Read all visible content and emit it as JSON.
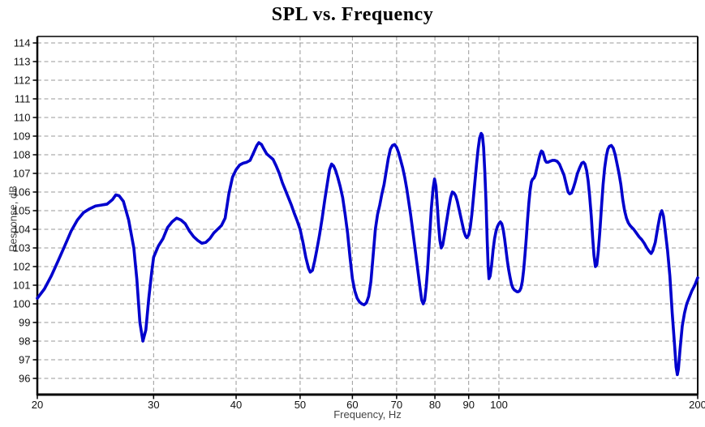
{
  "chart_data": {
    "type": "line",
    "title": "SPL vs. Frequency",
    "xlabel": "Frequency, Hz",
    "ylabel": "Response, dB",
    "x_scale": "log",
    "xlim": [
      20,
      200
    ],
    "ylim": [
      95.1,
      114.35
    ],
    "x_ticks": [
      20,
      30,
      40,
      50,
      60,
      70,
      80,
      90,
      100,
      200
    ],
    "grid_x": [
      30,
      40,
      50,
      60,
      70,
      80,
      90,
      100
    ],
    "y_ticks": [
      96,
      97,
      98,
      99,
      100,
      101,
      102,
      103,
      104,
      105,
      106,
      107,
      108,
      109,
      110,
      111,
      112,
      113,
      114
    ],
    "grid": "dashed",
    "legend": "none",
    "line_color": "#0000CD",
    "grid_color": "#999999",
    "axis_color": "#000000",
    "label_color": "#444444",
    "background": "#FFFFFF",
    "series": [
      {
        "name": "SPL",
        "points": [
          [
            20,
            100.3
          ],
          [
            20.5,
            100.8
          ],
          [
            21,
            101.5
          ],
          [
            21.5,
            102.3
          ],
          [
            22,
            103.1
          ],
          [
            22.5,
            103.9
          ],
          [
            23,
            104.5
          ],
          [
            23.5,
            104.9
          ],
          [
            24,
            105.1
          ],
          [
            24.5,
            105.25
          ],
          [
            25,
            105.3
          ],
          [
            25.5,
            105.35
          ],
          [
            26,
            105.6
          ],
          [
            26.3,
            105.85
          ],
          [
            26.6,
            105.8
          ],
          [
            27,
            105.5
          ],
          [
            27.5,
            104.5
          ],
          [
            28,
            103.0
          ],
          [
            28.3,
            101.3
          ],
          [
            28.6,
            99.0
          ],
          [
            28.9,
            98.0
          ],
          [
            29.2,
            98.6
          ],
          [
            29.5,
            100.3
          ],
          [
            29.8,
            101.7
          ],
          [
            30,
            102.5
          ],
          [
            30.5,
            103.1
          ],
          [
            31,
            103.5
          ],
          [
            31.5,
            104.1
          ],
          [
            32,
            104.4
          ],
          [
            32.5,
            104.6
          ],
          [
            33,
            104.5
          ],
          [
            33.5,
            104.3
          ],
          [
            34,
            103.9
          ],
          [
            34.5,
            103.6
          ],
          [
            35,
            103.4
          ],
          [
            35.5,
            103.25
          ],
          [
            36,
            103.3
          ],
          [
            36.5,
            103.5
          ],
          [
            37,
            103.8
          ],
          [
            37.5,
            104.0
          ],
          [
            38,
            104.2
          ],
          [
            38.5,
            104.6
          ],
          [
            39,
            105.9
          ],
          [
            39.5,
            106.8
          ],
          [
            40,
            107.2
          ],
          [
            40.5,
            107.45
          ],
          [
            41,
            107.55
          ],
          [
            41.5,
            107.6
          ],
          [
            42,
            107.7
          ],
          [
            42.5,
            108.1
          ],
          [
            43,
            108.5
          ],
          [
            43.3,
            108.65
          ],
          [
            43.7,
            108.55
          ],
          [
            44,
            108.35
          ],
          [
            44.5,
            108.05
          ],
          [
            45,
            107.9
          ],
          [
            45.5,
            107.75
          ],
          [
            46,
            107.4
          ],
          [
            46.5,
            107.0
          ],
          [
            47,
            106.5
          ],
          [
            47.5,
            106.1
          ],
          [
            48,
            105.7
          ],
          [
            48.5,
            105.3
          ],
          [
            49,
            104.85
          ],
          [
            49.5,
            104.45
          ],
          [
            50,
            104.0
          ],
          [
            50.5,
            103.3
          ],
          [
            51,
            102.5
          ],
          [
            51.5,
            101.9
          ],
          [
            51.8,
            101.7
          ],
          [
            52.2,
            101.8
          ],
          [
            52.6,
            102.3
          ],
          [
            53,
            102.9
          ],
          [
            53.5,
            103.7
          ],
          [
            54,
            104.6
          ],
          [
            54.5,
            105.6
          ],
          [
            55,
            106.5
          ],
          [
            55.4,
            107.2
          ],
          [
            55.8,
            107.5
          ],
          [
            56.2,
            107.4
          ],
          [
            56.6,
            107.15
          ],
          [
            57,
            106.8
          ],
          [
            57.5,
            106.3
          ],
          [
            58,
            105.7
          ],
          [
            58.5,
            104.8
          ],
          [
            59,
            103.8
          ],
          [
            59.5,
            102.5
          ],
          [
            60,
            101.35
          ],
          [
            60.5,
            100.7
          ],
          [
            61,
            100.3
          ],
          [
            61.5,
            100.1
          ],
          [
            62,
            100.0
          ],
          [
            62.5,
            99.95
          ],
          [
            63,
            100.05
          ],
          [
            63.5,
            100.4
          ],
          [
            64,
            101.2
          ],
          [
            64.5,
            102.6
          ],
          [
            65,
            104.0
          ],
          [
            65.5,
            104.8
          ],
          [
            66,
            105.3
          ],
          [
            66.5,
            105.9
          ],
          [
            67,
            106.4
          ],
          [
            67.5,
            107.1
          ],
          [
            68,
            107.8
          ],
          [
            68.5,
            108.3
          ],
          [
            69,
            108.5
          ],
          [
            69.5,
            108.55
          ],
          [
            70,
            108.4
          ],
          [
            70.5,
            108.1
          ],
          [
            71,
            107.7
          ],
          [
            71.5,
            107.3
          ],
          [
            72,
            106.8
          ],
          [
            72.5,
            106.2
          ],
          [
            73,
            105.5
          ],
          [
            73.5,
            104.8
          ],
          [
            74,
            104.0
          ],
          [
            74.5,
            103.2
          ],
          [
            75,
            102.4
          ],
          [
            75.5,
            101.6
          ],
          [
            76,
            100.8
          ],
          [
            76.4,
            100.2
          ],
          [
            76.8,
            100.0
          ],
          [
            77.2,
            100.2
          ],
          [
            77.6,
            100.9
          ],
          [
            78,
            101.9
          ],
          [
            78.5,
            103.5
          ],
          [
            79,
            105.1
          ],
          [
            79.5,
            106.2
          ],
          [
            79.9,
            106.7
          ],
          [
            80.3,
            106.3
          ],
          [
            80.7,
            105.2
          ],
          [
            81,
            104.3
          ],
          [
            81.4,
            103.4
          ],
          [
            81.8,
            103.0
          ],
          [
            82.2,
            103.15
          ],
          [
            82.7,
            103.7
          ],
          [
            83.3,
            104.4
          ],
          [
            84,
            105.2
          ],
          [
            84.5,
            105.7
          ],
          [
            85,
            106.0
          ],
          [
            85.5,
            105.95
          ],
          [
            86,
            105.8
          ],
          [
            86.5,
            105.5
          ],
          [
            87,
            105.1
          ],
          [
            87.5,
            104.7
          ],
          [
            88,
            104.3
          ],
          [
            88.5,
            103.9
          ],
          [
            89,
            103.65
          ],
          [
            89.4,
            103.55
          ],
          [
            90,
            103.7
          ],
          [
            90.5,
            104.1
          ],
          [
            91,
            104.8
          ],
          [
            91.5,
            105.7
          ],
          [
            92,
            106.6
          ],
          [
            92.5,
            107.5
          ],
          [
            93,
            108.3
          ],
          [
            93.5,
            108.9
          ],
          [
            94,
            109.15
          ],
          [
            94.4,
            109.05
          ],
          [
            94.8,
            108.4
          ],
          [
            95.2,
            107.1
          ],
          [
            95.6,
            105.5
          ],
          [
            96,
            103.4
          ],
          [
            96.3,
            102.1
          ],
          [
            96.6,
            101.35
          ],
          [
            97,
            101.5
          ],
          [
            97.5,
            102.1
          ],
          [
            98,
            102.9
          ],
          [
            98.5,
            103.5
          ],
          [
            99,
            103.9
          ],
          [
            99.5,
            104.15
          ],
          [
            100,
            104.3
          ],
          [
            100.5,
            104.4
          ],
          [
            101,
            104.3
          ],
          [
            101.5,
            104.0
          ],
          [
            102,
            103.5
          ],
          [
            102.5,
            102.9
          ],
          [
            103,
            102.3
          ],
          [
            103.5,
            101.8
          ],
          [
            104,
            101.4
          ],
          [
            104.5,
            101.05
          ],
          [
            105,
            100.85
          ],
          [
            105.5,
            100.75
          ],
          [
            106,
            100.7
          ],
          [
            106.5,
            100.65
          ],
          [
            107,
            100.65
          ],
          [
            107.5,
            100.7
          ],
          [
            108,
            100.85
          ],
          [
            108.5,
            101.2
          ],
          [
            109,
            101.8
          ],
          [
            109.5,
            102.6
          ],
          [
            110,
            103.5
          ],
          [
            110.5,
            104.5
          ],
          [
            111,
            105.4
          ],
          [
            111.5,
            106.1
          ],
          [
            112,
            106.55
          ],
          [
            112.5,
            106.7
          ],
          [
            113,
            106.75
          ],
          [
            113.5,
            106.9
          ],
          [
            114,
            107.2
          ],
          [
            114.5,
            107.5
          ],
          [
            115,
            107.8
          ],
          [
            115.5,
            108.05
          ],
          [
            116,
            108.2
          ],
          [
            116.5,
            108.15
          ],
          [
            117,
            107.95
          ],
          [
            117.5,
            107.7
          ],
          [
            118,
            107.6
          ],
          [
            118.7,
            107.6
          ],
          [
            119.5,
            107.65
          ],
          [
            120.5,
            107.7
          ],
          [
            121.5,
            107.7
          ],
          [
            122.5,
            107.65
          ],
          [
            123.5,
            107.5
          ],
          [
            124.5,
            107.2
          ],
          [
            125.5,
            106.9
          ],
          [
            126.5,
            106.4
          ],
          [
            127.3,
            106.0
          ],
          [
            128,
            105.9
          ],
          [
            128.8,
            105.95
          ],
          [
            129.6,
            106.2
          ],
          [
            130.5,
            106.55
          ],
          [
            131.5,
            107.0
          ],
          [
            132.5,
            107.3
          ],
          [
            133.5,
            107.55
          ],
          [
            134.3,
            107.6
          ],
          [
            135,
            107.5
          ],
          [
            135.8,
            107.15
          ],
          [
            136.5,
            106.6
          ],
          [
            137.2,
            105.8
          ],
          [
            138,
            104.7
          ],
          [
            138.7,
            103.5
          ],
          [
            139.3,
            102.6
          ],
          [
            140,
            102.0
          ],
          [
            140.7,
            102.1
          ],
          [
            141.4,
            102.8
          ],
          [
            142.2,
            103.9
          ],
          [
            143,
            105.2
          ],
          [
            143.8,
            106.4
          ],
          [
            144.6,
            107.3
          ],
          [
            145.4,
            107.9
          ],
          [
            146.2,
            108.3
          ],
          [
            147,
            108.45
          ],
          [
            148,
            108.5
          ],
          [
            149,
            108.35
          ],
          [
            150,
            108.0
          ],
          [
            151,
            107.5
          ],
          [
            152,
            107.0
          ],
          [
            153,
            106.4
          ],
          [
            154,
            105.6
          ],
          [
            155,
            105.0
          ],
          [
            156,
            104.6
          ],
          [
            157,
            104.35
          ],
          [
            158,
            104.2
          ],
          [
            159,
            104.1
          ],
          [
            160,
            104.0
          ],
          [
            161.5,
            103.8
          ],
          [
            163,
            103.6
          ],
          [
            164.5,
            103.45
          ],
          [
            166,
            103.25
          ],
          [
            167.5,
            103.0
          ],
          [
            169,
            102.8
          ],
          [
            170,
            102.7
          ],
          [
            171,
            102.85
          ],
          [
            172.5,
            103.3
          ],
          [
            174,
            104.1
          ],
          [
            175.5,
            104.8
          ],
          [
            176.5,
            105.0
          ],
          [
            177.5,
            104.7
          ],
          [
            178.5,
            104.0
          ],
          [
            180,
            102.9
          ],
          [
            181.5,
            101.5
          ],
          [
            183,
            99.5
          ],
          [
            184.5,
            97.8
          ],
          [
            185.5,
            96.6
          ],
          [
            186.3,
            96.2
          ],
          [
            187,
            96.5
          ],
          [
            188,
            97.5
          ],
          [
            189.5,
            98.8
          ],
          [
            191,
            99.5
          ],
          [
            192.5,
            100.0
          ],
          [
            194,
            100.3
          ],
          [
            196,
            100.7
          ],
          [
            198,
            101.0
          ],
          [
            200,
            101.4
          ]
        ]
      }
    ]
  }
}
